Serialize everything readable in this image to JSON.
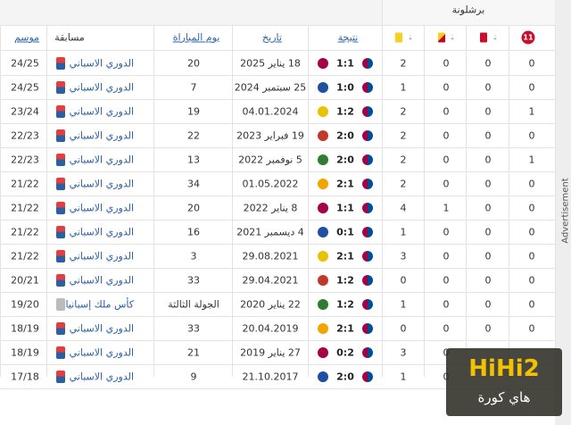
{
  "header": {
    "team": "برشلونة",
    "columns": {
      "season": "موسم",
      "competition": "مسابقة",
      "matchday": "يوم المباراة",
      "date": "تاريخ",
      "result": "نتيجة",
      "penalty": "11"
    }
  },
  "rows": [
    {
      "season": "24/25",
      "competition": "الدوري الاسباني",
      "matchday": 20,
      "date": "18 يناير 2025",
      "result": "1:1",
      "yellow": 2,
      "yellow_red": 0,
      "red": 0,
      "penalty": 0
    },
    {
      "season": "24/25",
      "competition": "الدوري الاسباني",
      "matchday": 7,
      "date": "25 سبتمبر 2024",
      "result": "1:0",
      "yellow": 1,
      "yellow_red": 0,
      "red": 0,
      "penalty": 0
    },
    {
      "season": "23/24",
      "competition": "الدوري الاسباني",
      "matchday": 19,
      "date": "04.01.2024",
      "result": "1:2",
      "yellow": 2,
      "yellow_red": 0,
      "red": 0,
      "penalty": 1
    },
    {
      "season": "22/23",
      "competition": "الدوري الاسباني",
      "matchday": 22,
      "date": "19 فبراير 2023",
      "result": "2:0",
      "yellow": 2,
      "yellow_red": 0,
      "red": 0,
      "penalty": 0
    },
    {
      "season": "22/23",
      "competition": "الدوري الاسباني",
      "matchday": 13,
      "date": "5 نوفمبر 2022",
      "result": "2:0",
      "yellow": 2,
      "yellow_red": 0,
      "red": 0,
      "penalty": 1
    },
    {
      "season": "21/22",
      "competition": "الدوري الاسباني",
      "matchday": 34,
      "date": "01.05.2022",
      "result": "2:1",
      "yellow": 2,
      "yellow_red": 0,
      "red": 0,
      "penalty": 0
    },
    {
      "season": "21/22",
      "competition": "الدوري الاسباني",
      "matchday": 20,
      "date": "8 يناير 2022",
      "result": "1:1",
      "yellow": 4,
      "yellow_red": 1,
      "red": 0,
      "penalty": 0
    },
    {
      "season": "21/22",
      "competition": "الدوري الاسباني",
      "matchday": 16,
      "date": "4 ديسمبر 2021",
      "result": "0:1",
      "yellow": 1,
      "yellow_red": 0,
      "red": 0,
      "penalty": 0
    },
    {
      "season": "21/22",
      "competition": "الدوري الاسباني",
      "matchday": 3,
      "date": "29.08.2021",
      "result": "2:1",
      "yellow": 3,
      "yellow_red": 0,
      "red": 0,
      "penalty": 0
    },
    {
      "season": "20/21",
      "competition": "الدوري الاسباني",
      "matchday": 33,
      "date": "29.04.2021",
      "result": "1:2",
      "yellow": 0,
      "yellow_red": 0,
      "red": 0,
      "penalty": 0
    },
    {
      "season": "19/20",
      "competition": "كأس ملك إسبانيا",
      "matchday": "الجولة الثالثة",
      "date": "22 يناير 2020",
      "result": "1:2",
      "yellow": 1,
      "yellow_red": 0,
      "red": 0,
      "penalty": 0
    },
    {
      "season": "18/19",
      "competition": "الدوري الاسباني",
      "matchday": 33,
      "date": "20.04.2019",
      "result": "2:1",
      "yellow": 0,
      "yellow_red": 0,
      "red": 0,
      "penalty": 0
    },
    {
      "season": "18/19",
      "competition": "الدوري الاسباني",
      "matchday": 21,
      "date": "27 يناير 2019",
      "result": "0:2",
      "yellow": 3,
      "yellow_red": 0
    },
    {
      "season": "17/18",
      "competition": "الدوري الاسباني",
      "matchday": 9,
      "date": "21.10.2017",
      "result": "2:0",
      "yellow": 1,
      "yellow_red": 0
    }
  ],
  "ad": "Advertisement",
  "watermark": {
    "logo": "HiHi2",
    "name": "هاي كورة"
  }
}
